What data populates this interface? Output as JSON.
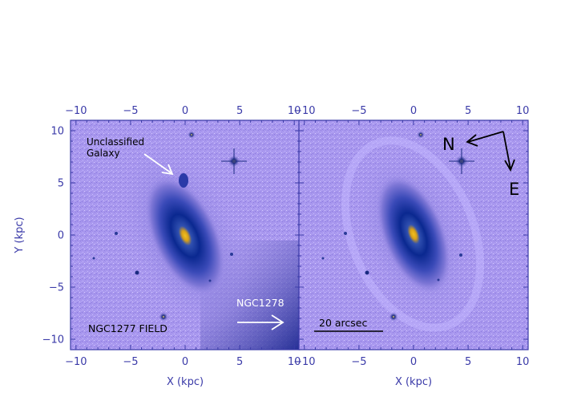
{
  "figure": {
    "axis_color": "#3a3aa8",
    "panel_background": "#a897ee",
    "galaxy_core_color": "#e0b020",
    "galaxy_halo_color": "#0a2a9a",
    "panels": [
      {
        "id": "left",
        "x_label": "X (kpc)",
        "y_label": "Y (kpc)",
        "x_ticks": [
          "−10",
          "−5",
          "0",
          "5",
          "10"
        ],
        "y_ticks": [
          "10",
          "5",
          "0",
          "−5",
          "−10"
        ],
        "annotations": {
          "unclassified": "Unclassified\nGalaxy",
          "ngc1278": "NGC1278",
          "field": "NGC1277 FIELD"
        }
      },
      {
        "id": "right",
        "x_label": "X (kpc)",
        "x_ticks": [
          "−10",
          "−5",
          "0",
          "5",
          "10"
        ],
        "annotations": {
          "scale_bar": "20 arcsec",
          "compass_n": "N",
          "compass_e": "E"
        }
      }
    ],
    "x_range": [
      -10.5,
      10.5
    ],
    "y_range": [
      -11,
      11
    ]
  }
}
